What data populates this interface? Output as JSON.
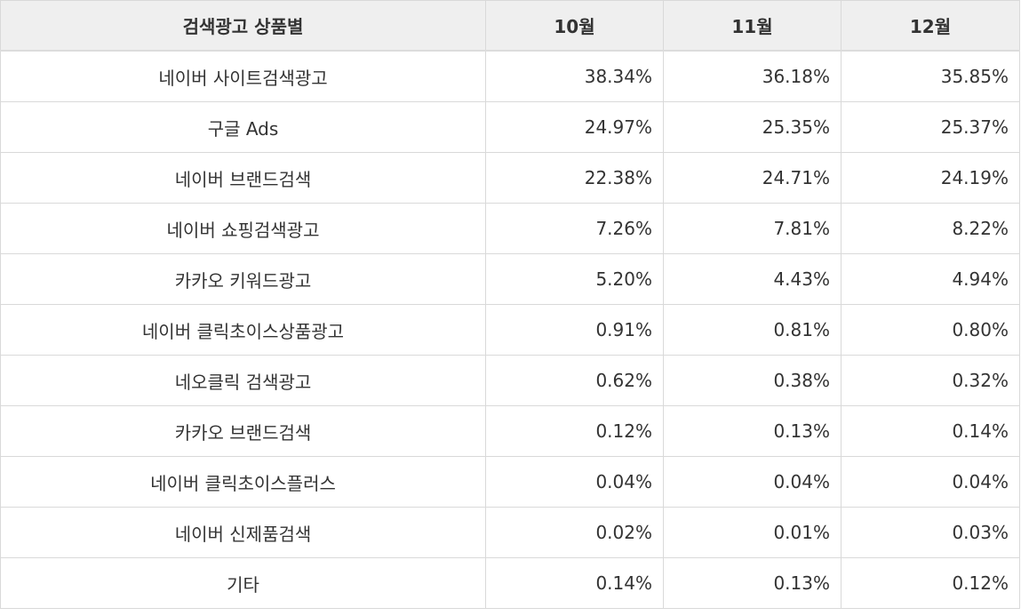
{
  "table": {
    "headers": [
      "검색광고 상품별",
      "10월",
      "11월",
      "12월"
    ],
    "rows": [
      [
        "네이버 사이트검색광고",
        "38.34%",
        "36.18%",
        "35.85%"
      ],
      [
        "구글 Ads",
        "24.97%",
        "25.35%",
        "25.37%"
      ],
      [
        "네이버 브랜드검색",
        "22.38%",
        "24.71%",
        "24.19%"
      ],
      [
        "네이버 쇼핑검색광고",
        "7.26%",
        "7.81%",
        "8.22%"
      ],
      [
        "카카오 키워드광고",
        "5.20%",
        "4.43%",
        "4.94%"
      ],
      [
        "네이버 클릭초이스상품광고",
        "0.91%",
        "0.81%",
        "0.80%"
      ],
      [
        "네오클릭 검색광고",
        "0.62%",
        "0.38%",
        "0.32%"
      ],
      [
        "카카오 브랜드검색",
        "0.12%",
        "0.13%",
        "0.14%"
      ],
      [
        "네이버 클릭초이스플러스",
        "0.04%",
        "0.04%",
        "0.04%"
      ],
      [
        "네이버 신제품검색",
        "0.02%",
        "0.01%",
        "0.03%"
      ],
      [
        "기타",
        "0.14%",
        "0.13%",
        "0.12%"
      ]
    ]
  }
}
